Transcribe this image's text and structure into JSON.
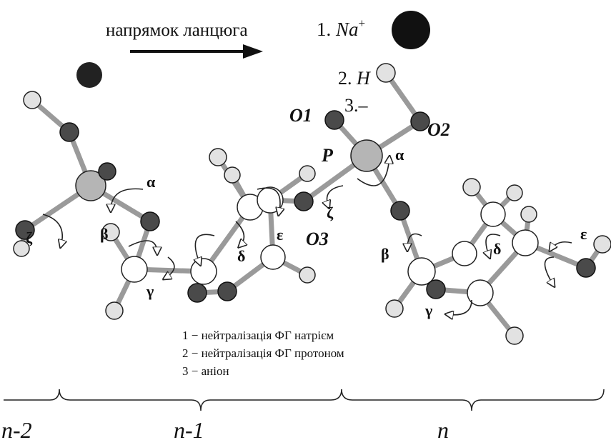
{
  "header": {
    "direction": "напрямок ланцюга"
  },
  "key": [
    {
      "label": "1.",
      "symbol": "Na",
      "charge": "+"
    },
    {
      "label": "2.",
      "symbol": "H"
    },
    {
      "label": "3.–"
    }
  ],
  "atoms": [
    "O1",
    "O2",
    "P",
    "O3"
  ],
  "angles": [
    "α",
    "ζ",
    "β",
    "γ",
    "δ",
    "ε",
    "ζ",
    "α",
    "β",
    "γ",
    "δ",
    "ε"
  ],
  "legend": [
    "1 − нейтралізація ФГ натрієм",
    "2 − нейтралізація ФГ протоном",
    "3 − аніон"
  ],
  "residues": [
    "n-2",
    "n-1",
    "n"
  ]
}
